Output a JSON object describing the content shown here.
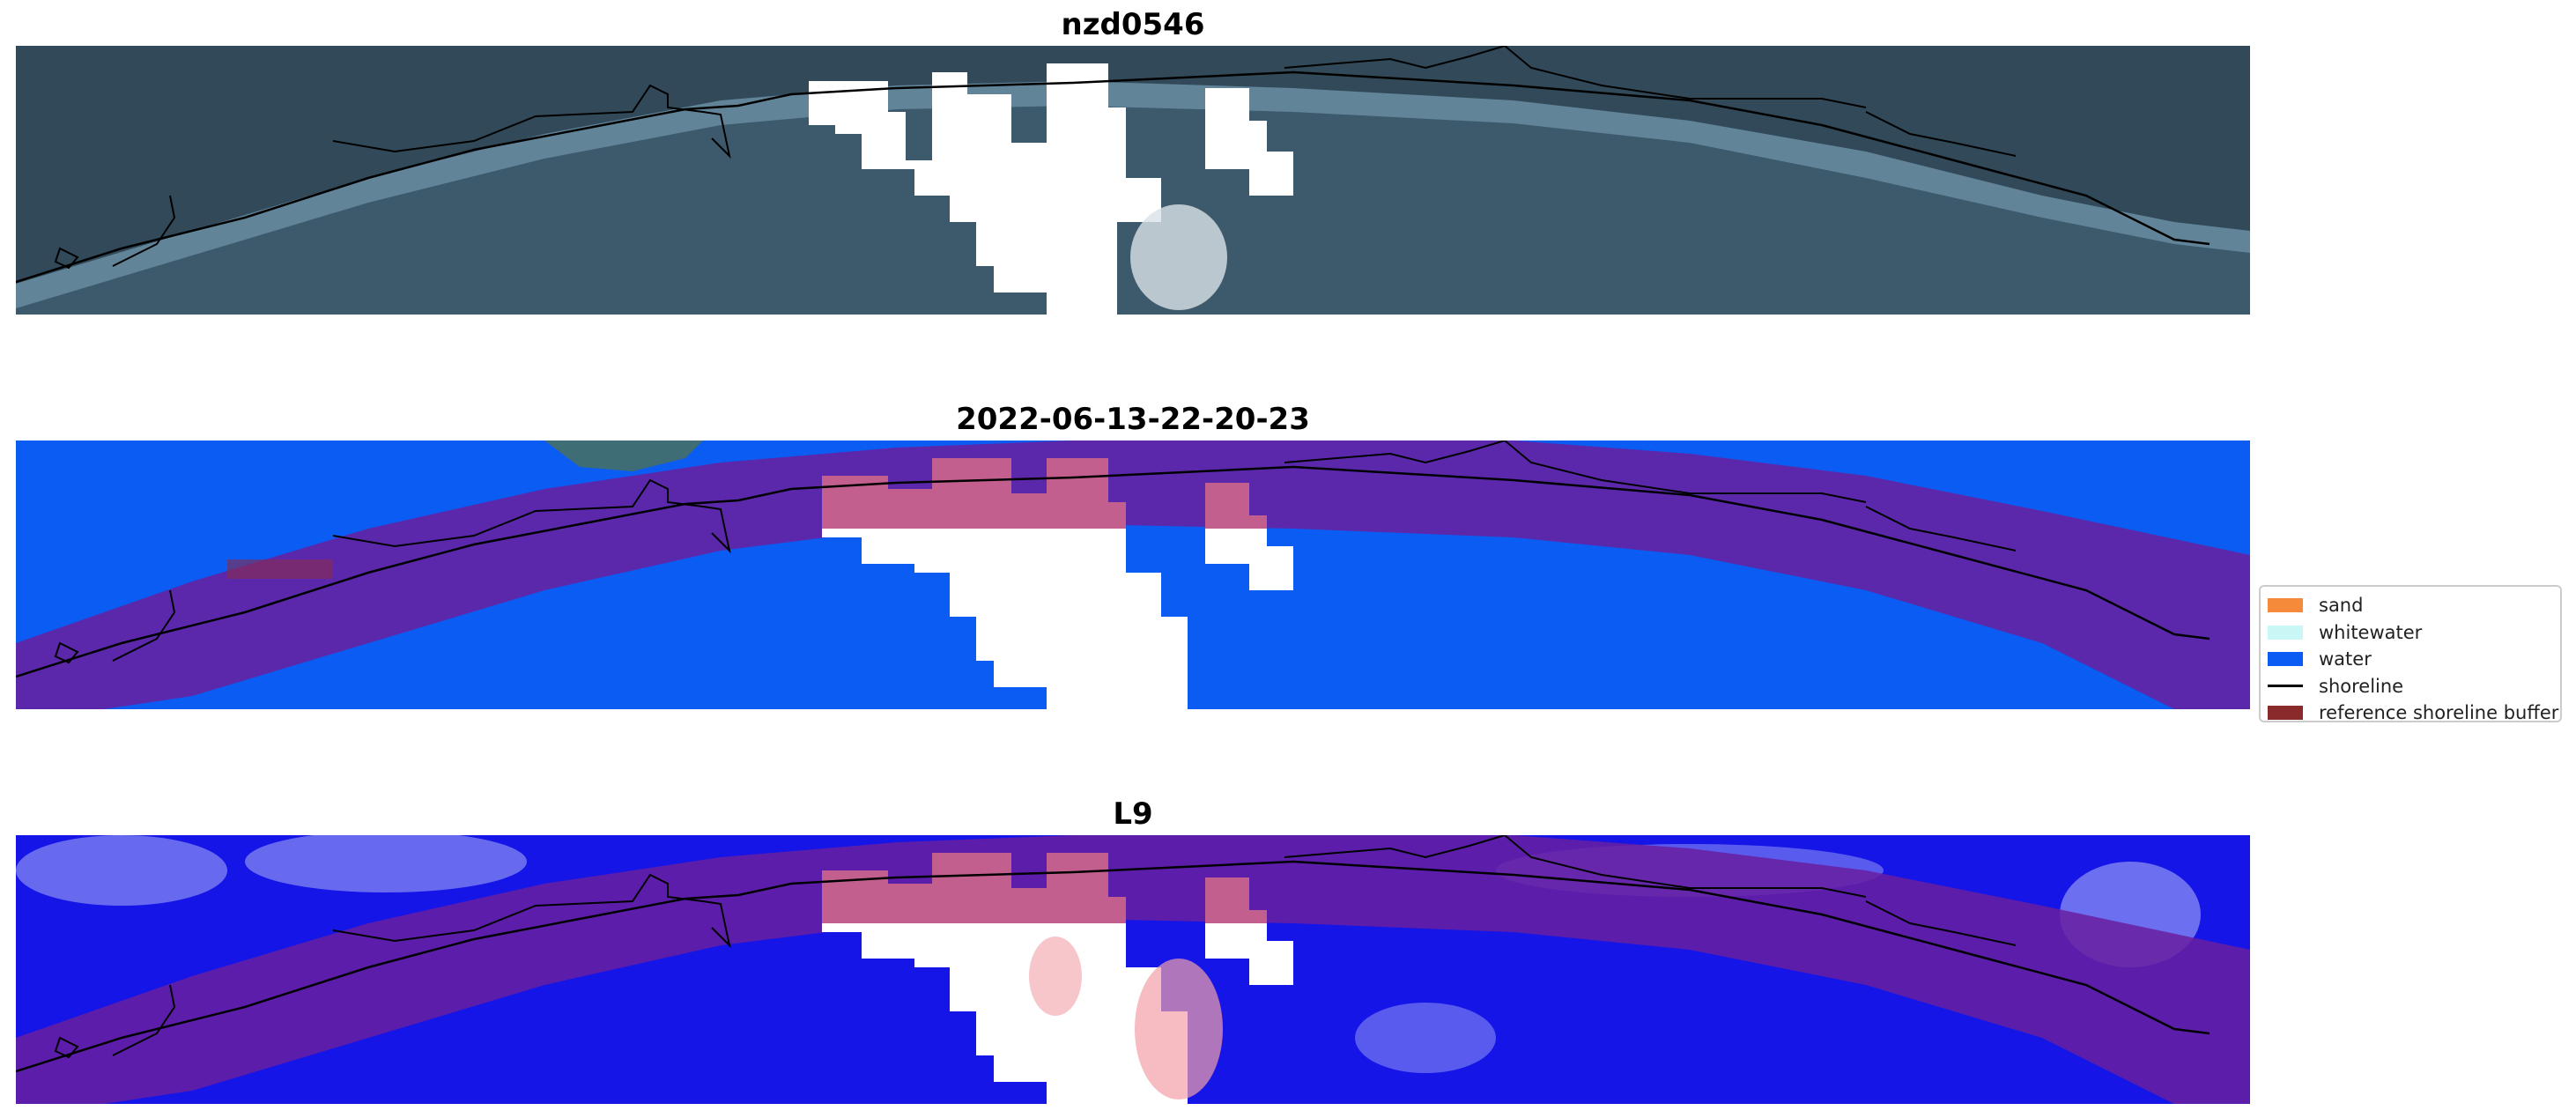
{
  "panels": [
    {
      "title": "nzd0546",
      "kind": "rgb"
    },
    {
      "title": "2022-06-13-22-20-23",
      "kind": "classified"
    },
    {
      "title": "L9",
      "kind": "mndwi"
    }
  ],
  "legend": {
    "items": [
      {
        "label": "sand",
        "color": "#f58b3a",
        "kind": "patch"
      },
      {
        "label": "whitewater",
        "color": "#c9f7f5",
        "kind": "patch"
      },
      {
        "label": "water",
        "color": "#0b5cf2",
        "kind": "patch"
      },
      {
        "label": "shoreline",
        "color": "#000000",
        "kind": "line"
      },
      {
        "label": "reference shoreline buffer",
        "color": "#8b2a2a",
        "kind": "patch"
      }
    ]
  },
  "colors": {
    "sea_rgb": "#3b5868",
    "land_rgb": "#2e4450",
    "water_class": "#0b5cf2",
    "buffer_overlay": "#6a1fa0",
    "mndwi_water": "#1414e6",
    "cloud_mask": "#ffffff",
    "shoreline": "#000000"
  }
}
